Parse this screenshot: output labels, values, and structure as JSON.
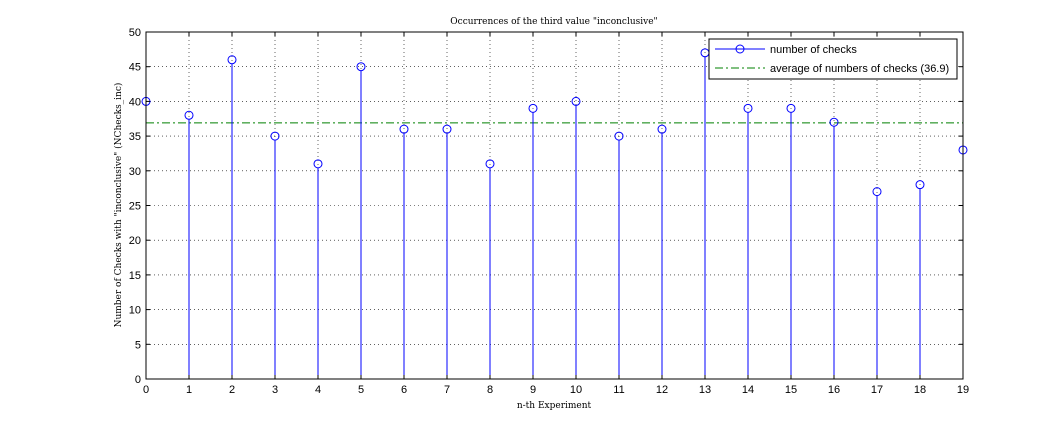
{
  "chart_data": {
    "type": "stem",
    "title": "Occurrences of the third value \"inconclusive\"",
    "xlabel": "n-th Experiment",
    "ylabel": "Number of Checks with \"inconclusive\" (NChecks_inc)",
    "xlim": [
      0,
      19
    ],
    "ylim": [
      0,
      50
    ],
    "xticks": [
      0,
      1,
      2,
      3,
      4,
      5,
      6,
      7,
      8,
      9,
      10,
      11,
      12,
      13,
      14,
      15,
      16,
      17,
      18,
      19
    ],
    "yticks": [
      0,
      5,
      10,
      15,
      20,
      25,
      30,
      35,
      40,
      45,
      50
    ],
    "grid": true,
    "legend_position": "top-right",
    "series": [
      {
        "name": "number of checks",
        "style": "stem",
        "color": "#0000ff",
        "marker": "circle",
        "x": [
          0,
          1,
          2,
          3,
          4,
          5,
          6,
          7,
          8,
          9,
          10,
          11,
          12,
          13,
          14,
          15,
          16,
          17,
          18,
          19
        ],
        "values": [
          40,
          38,
          46,
          35,
          31,
          45,
          36,
          36,
          31,
          39,
          40,
          35,
          36,
          47,
          39,
          39,
          37,
          27,
          28,
          33
        ]
      },
      {
        "name": "average of numbers of checks (36.9)",
        "style": "dash-dot",
        "color": "#008000",
        "value": 36.9
      }
    ]
  }
}
